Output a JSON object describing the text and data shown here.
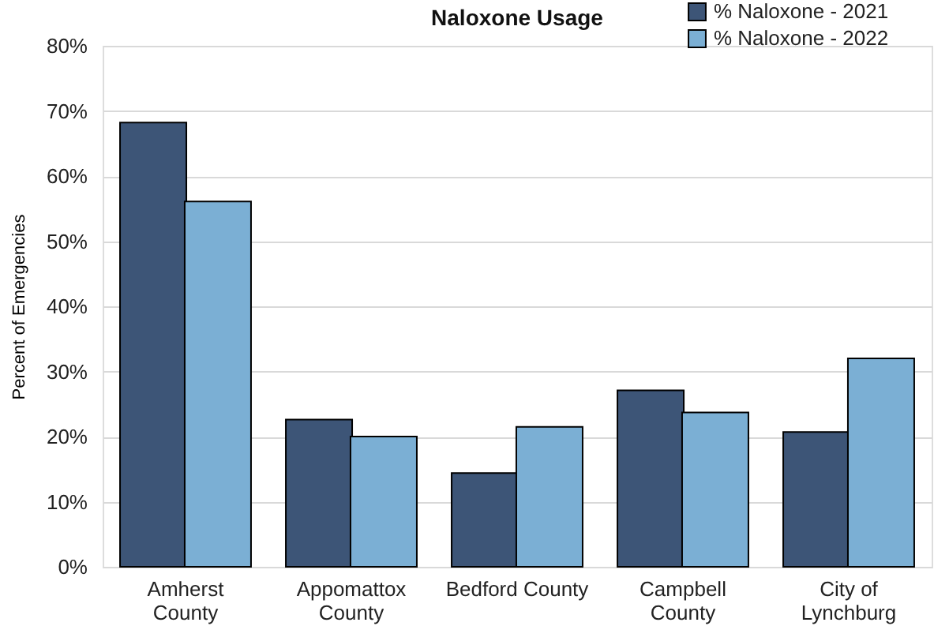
{
  "chart_data": {
    "type": "bar",
    "title": "Naloxone Usage",
    "ylabel": "Percent of Emergencies",
    "categories": [
      "Amherst\nCounty",
      "Appomattox\nCounty",
      "Bedford County",
      "Campbell\nCounty",
      "City of\nLynchburg"
    ],
    "series": [
      {
        "name": "% Naloxone - 2021",
        "color": "#3d5577",
        "values": [
          68.2,
          22.6,
          14.4,
          27.1,
          20.7
        ]
      },
      {
        "name": "% Naloxone - 2022",
        "color": "#7bafd4",
        "values": [
          56.1,
          20.0,
          21.5,
          23.7,
          32.0
        ]
      }
    ],
    "ylim": [
      0,
      80
    ],
    "yticks": [
      {
        "value": 0,
        "label": "0%"
      },
      {
        "value": 10,
        "label": "10%"
      },
      {
        "value": 20,
        "label": "20%"
      },
      {
        "value": 30,
        "label": "30%"
      },
      {
        "value": 40,
        "label": "40%"
      },
      {
        "value": 50,
        "label": "50%"
      },
      {
        "value": 60,
        "label": "60%"
      },
      {
        "value": 70,
        "label": "70%"
      },
      {
        "value": 80,
        "label": "80%"
      }
    ],
    "grid": "y",
    "legend": "top right"
  }
}
